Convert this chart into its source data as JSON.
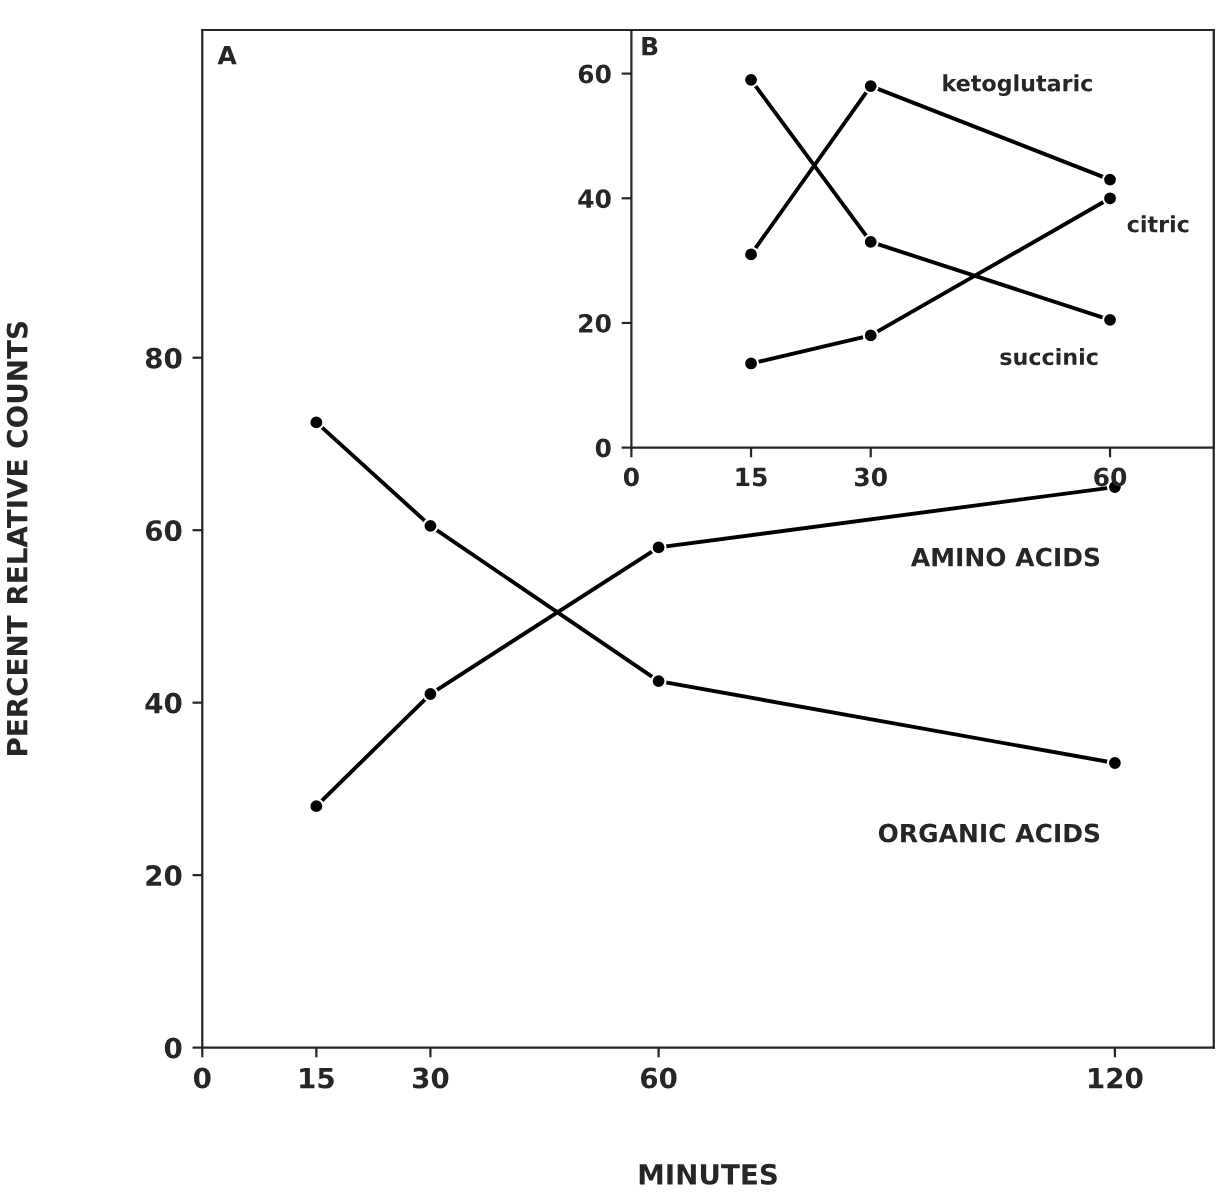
{
  "chart_data": [
    {
      "type": "line",
      "xlabel": "MINUTES",
      "ylabel": "PERCENT RELATIVE COUNTS",
      "annotations": [
        "A"
      ],
      "xlim": [
        0,
        133
      ],
      "xticks": [
        0,
        15,
        30,
        60,
        120
      ],
      "ylim": [
        0,
        118
      ],
      "yticks": [
        0,
        20,
        40,
        60,
        80
      ],
      "marker": "circle",
      "line_style": "solid",
      "grid": false,
      "legend": false,
      "series": [
        {
          "name": "AMINO ACIDS",
          "color": "#000000",
          "x": [
            15,
            30,
            60,
            120
          ],
          "values": [
            28,
            41,
            58,
            65
          ]
        },
        {
          "name": "ORGANIC ACIDS",
          "color": "#000000",
          "x": [
            15,
            30,
            60,
            120
          ],
          "values": [
            72.5,
            60.5,
            42.5,
            33
          ]
        }
      ]
    },
    {
      "type": "line",
      "annotations": [
        "B"
      ],
      "xlim": [
        0,
        73
      ],
      "xticks": [
        0,
        15,
        30,
        60
      ],
      "ylim": [
        0,
        67
      ],
      "yticks": [
        0,
        20,
        40,
        60
      ],
      "marker": "circle",
      "line_style": "solid",
      "grid": false,
      "legend": false,
      "series": [
        {
          "name": "ketoglutaric",
          "color": "#000000",
          "x": [
            15,
            30,
            60
          ],
          "values": [
            31,
            58,
            43
          ]
        },
        {
          "name": "succinic",
          "color": "#000000",
          "x": [
            15,
            30,
            60
          ],
          "values": [
            59,
            33,
            20.5
          ]
        },
        {
          "name": "citric",
          "color": "#000000",
          "x": [
            15,
            30,
            60
          ],
          "values": [
            13.5,
            18,
            40
          ]
        }
      ]
    }
  ]
}
